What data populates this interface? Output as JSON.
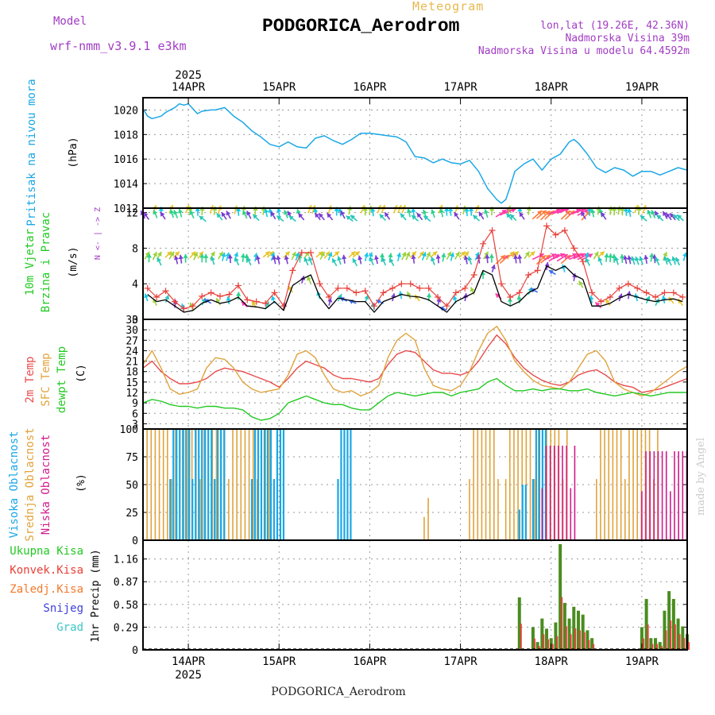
{
  "header": {
    "model_label": "Model",
    "model_name": "wrf-nmm_v3.9.1  e3km",
    "app_title": "Meteogram",
    "station": "PODGORICA_Aerodrom",
    "coords": "lon,lat (19.26E, 42.36N)",
    "elevation": "Nadmorska Visina 39m",
    "model_elevation": "Nadmorska Visina u modelu 64.4592m",
    "credit": "made by Angel",
    "footer_station": "PODGORICA_Aerodrom"
  },
  "colors": {
    "pressure": "#1aa7e6",
    "gust": "#e8403a",
    "wind_speed": "#000000",
    "temp2m": "#e84b4b",
    "sfc_temp": "#e0a33c",
    "dewpoint": "#22c922",
    "cloud_high": "#1aa7e6",
    "cloud_mid": "#e0a33c",
    "cloud_low": "#d01c8b",
    "precip_total": "#4a8c1f",
    "precip_conv": "#e8403a"
  },
  "chart_data": [
    {
      "type": "line",
      "name": "pressure",
      "ylabel": "Pritisak na nivou mora",
      "unit": "(hPa)",
      "ylim": [
        1012,
        1021
      ],
      "yticks": [
        1012,
        1014,
        1016,
        1018,
        1020
      ],
      "top_year": "2025",
      "x_labels": [
        "14APR",
        "15APR",
        "16APR",
        "17APR",
        "18APR",
        "19APR"
      ],
      "x_day_values": [
        0,
        1,
        2,
        3,
        4,
        5
      ],
      "xlim": [
        -0.5,
        5.5
      ],
      "x": [
        -0.5,
        -0.45,
        -0.4,
        -0.3,
        -0.25,
        -0.15,
        -0.1,
        -0.05,
        0.0,
        0.05,
        0.1,
        0.15,
        0.25,
        0.3,
        0.4,
        0.5,
        0.6,
        0.7,
        0.8,
        0.9,
        1.0,
        1.1,
        1.2,
        1.3,
        1.4,
        1.5,
        1.6,
        1.7,
        1.8,
        1.9,
        2.0,
        2.1,
        2.2,
        2.3,
        2.4,
        2.5,
        2.6,
        2.7,
        2.8,
        2.9,
        3.0,
        3.1,
        3.2,
        3.3,
        3.4,
        3.45,
        3.5,
        3.55,
        3.6,
        3.7,
        3.8,
        3.9,
        4.0,
        4.1,
        4.2,
        4.25,
        4.3,
        4.4,
        4.5,
        4.6,
        4.7,
        4.8,
        4.9,
        5.0,
        5.1,
        5.2,
        5.3,
        5.4,
        5.5
      ],
      "y": [
        1020.1,
        1019.5,
        1019.3,
        1019.5,
        1019.8,
        1020.2,
        1020.5,
        1020.4,
        1020.5,
        1020.1,
        1019.7,
        1019.9,
        1020.0,
        1020.0,
        1020.2,
        1019.5,
        1019.0,
        1018.3,
        1017.8,
        1017.2,
        1017.0,
        1017.4,
        1017.0,
        1016.9,
        1017.7,
        1017.9,
        1017.5,
        1017.2,
        1017.6,
        1018.1,
        1018.1,
        1018.0,
        1017.9,
        1017.8,
        1017.4,
        1016.2,
        1016.1,
        1015.7,
        1016.0,
        1015.7,
        1015.6,
        1015.9,
        1015.0,
        1013.6,
        1012.7,
        1012.4,
        1012.7,
        1013.8,
        1015.0,
        1015.6,
        1016.0,
        1015.1,
        1016.0,
        1016.4,
        1017.4,
        1017.6,
        1017.3,
        1016.4,
        1015.3,
        1014.9,
        1015.3,
        1015.1,
        1014.6,
        1015.0,
        1015.0,
        1014.7,
        1015.0,
        1015.3,
        1015.1
      ]
    },
    {
      "type": "line",
      "name": "wind",
      "ylabel": "10m Vjetar Brzina i Pravac",
      "unit": "(m/s)",
      "direction_legend": "N <- | -> Z",
      "ylim": [
        0,
        12.5
      ],
      "yticks": [
        0,
        4,
        8,
        12
      ],
      "series": [
        {
          "name": "gust",
          "x": [
            -0.45,
            -0.35,
            -0.25,
            -0.15,
            -0.05,
            0.05,
            0.15,
            0.25,
            0.35,
            0.45,
            0.55,
            0.65,
            0.75,
            0.85,
            0.95,
            1.05,
            1.15,
            1.25,
            1.35,
            1.45,
            1.55,
            1.65,
            1.75,
            1.85,
            1.95,
            2.05,
            2.15,
            2.25,
            2.35,
            2.45,
            2.55,
            2.65,
            2.75,
            2.85,
            2.95,
            3.05,
            3.15,
            3.25,
            3.35,
            3.45,
            3.55,
            3.65,
            3.75,
            3.85,
            3.95,
            4.05,
            4.15,
            4.25,
            4.35,
            4.45,
            4.55,
            4.65,
            4.75,
            4.85,
            4.95,
            5.05,
            5.15,
            5.25,
            5.35,
            5.45
          ],
          "values": [
            3.5,
            2.5,
            3.2,
            2.0,
            1.2,
            1.5,
            2.6,
            3.0,
            2.6,
            2.8,
            3.8,
            2.2,
            2.0,
            1.8,
            3.0,
            1.5,
            5.5,
            7.5,
            7.5,
            4.0,
            2.5,
            3.5,
            3.5,
            3.0,
            3.2,
            1.5,
            3.0,
            3.5,
            4.0,
            4.0,
            3.5,
            3.5,
            2.5,
            1.5,
            3.0,
            3.5,
            5.0,
            8.5,
            10.0,
            4.0,
            2.5,
            3.0,
            5.0,
            5.5,
            10.5,
            9.5,
            10.0,
            8.0,
            6.5,
            3.0,
            2.0,
            2.5,
            3.5,
            4.0,
            3.5,
            3.0,
            2.5,
            3.0,
            3.0,
            2.5
          ]
        },
        {
          "name": "wind_speed",
          "x": [
            -0.45,
            -0.35,
            -0.25,
            -0.15,
            -0.05,
            0.05,
            0.15,
            0.25,
            0.35,
            0.45,
            0.55,
            0.65,
            0.75,
            0.85,
            0.95,
            1.05,
            1.15,
            1.25,
            1.35,
            1.45,
            1.55,
            1.65,
            1.75,
            1.85,
            1.95,
            2.05,
            2.15,
            2.25,
            2.35,
            2.45,
            2.55,
            2.65,
            2.75,
            2.85,
            2.95,
            3.05,
            3.15,
            3.25,
            3.35,
            3.45,
            3.55,
            3.65,
            3.75,
            3.85,
            3.95,
            4.05,
            4.15,
            4.25,
            4.35,
            4.45,
            4.55,
            4.65,
            4.75,
            4.85,
            4.95,
            5.05,
            5.15,
            5.25,
            5.35,
            5.45
          ],
          "values": [
            2.8,
            2.0,
            2.2,
            1.5,
            0.8,
            1.0,
            1.8,
            2.2,
            1.8,
            2.0,
            2.5,
            1.5,
            1.4,
            1.2,
            2.0,
            1.0,
            3.8,
            4.5,
            5.0,
            2.5,
            1.2,
            2.4,
            2.2,
            2.0,
            2.0,
            0.8,
            2.0,
            2.4,
            2.8,
            2.6,
            2.5,
            2.2,
            1.5,
            0.8,
            2.0,
            2.5,
            3.0,
            5.5,
            5.0,
            2.0,
            1.5,
            2.0,
            3.0,
            3.5,
            6.0,
            5.5,
            6.0,
            5.0,
            4.5,
            1.5,
            1.5,
            1.8,
            2.4,
            2.8,
            2.5,
            2.2,
            2.0,
            2.2,
            2.3,
            2.0
          ]
        }
      ]
    },
    {
      "type": "line",
      "name": "temperature",
      "ylabel_lines": [
        "2m Temp",
        "SFC Temp",
        "dewpt Temp"
      ],
      "unit": "(C)",
      "ylim": [
        1.5,
        33
      ],
      "yticks": [
        3,
        6,
        9,
        12,
        15,
        18,
        21,
        24,
        27,
        30,
        33
      ],
      "series": [
        {
          "name": "2m Temp",
          "x": [
            -0.5,
            -0.4,
            -0.3,
            -0.2,
            -0.1,
            0.0,
            0.1,
            0.2,
            0.3,
            0.4,
            0.5,
            0.6,
            0.7,
            0.8,
            0.9,
            1.0,
            1.1,
            1.2,
            1.3,
            1.4,
            1.5,
            1.6,
            1.7,
            1.8,
            1.9,
            2.0,
            2.1,
            2.2,
            2.3,
            2.4,
            2.5,
            2.6,
            2.7,
            2.8,
            2.9,
            3.0,
            3.1,
            3.2,
            3.3,
            3.4,
            3.5,
            3.6,
            3.7,
            3.8,
            3.9,
            4.0,
            4.1,
            4.2,
            4.3,
            4.4,
            4.5,
            4.6,
            4.7,
            4.8,
            4.9,
            5.0,
            5.1,
            5.2,
            5.3,
            5.4,
            5.5
          ],
          "values": [
            19,
            21,
            18,
            16,
            14.5,
            14.5,
            15,
            16,
            18,
            19,
            18.5,
            18,
            17,
            16,
            15,
            13.5,
            16,
            19,
            21,
            20,
            19,
            17,
            16,
            16,
            15.5,
            15,
            16,
            20,
            23,
            24,
            23.5,
            21,
            18.5,
            17.5,
            17.5,
            17,
            18,
            21,
            25,
            28.5,
            26,
            22,
            19,
            17,
            15.5,
            14.5,
            14,
            15,
            17,
            18,
            18.5,
            17,
            15,
            14,
            13.5,
            12,
            12.5,
            13,
            14,
            15,
            16
          ]
        },
        {
          "name": "SFC Temp",
          "x": [
            -0.5,
            -0.4,
            -0.3,
            -0.2,
            -0.1,
            0.0,
            0.1,
            0.2,
            0.3,
            0.4,
            0.5,
            0.6,
            0.7,
            0.8,
            0.9,
            1.0,
            1.1,
            1.2,
            1.3,
            1.4,
            1.5,
            1.6,
            1.7,
            1.8,
            1.9,
            2.0,
            2.1,
            2.2,
            2.3,
            2.4,
            2.5,
            2.6,
            2.7,
            2.8,
            2.9,
            3.0,
            3.1,
            3.2,
            3.3,
            3.4,
            3.5,
            3.6,
            3.7,
            3.8,
            3.9,
            4.0,
            4.1,
            4.2,
            4.3,
            4.4,
            4.5,
            4.6,
            4.7,
            4.8,
            4.9,
            5.0,
            5.1,
            5.2,
            5.3,
            5.4,
            5.5
          ],
          "values": [
            20,
            24,
            19,
            13,
            11.5,
            12,
            13,
            19,
            22,
            21.5,
            19,
            15,
            13,
            12,
            12.5,
            13,
            17,
            23,
            24,
            22,
            17,
            13,
            12,
            12.5,
            11,
            12,
            14,
            22,
            27,
            29,
            27,
            19,
            14,
            13,
            12.5,
            14,
            18,
            24,
            29,
            31,
            27,
            21,
            18,
            15.5,
            14,
            13.5,
            13,
            15,
            19,
            23,
            24,
            21,
            15,
            13,
            12,
            11,
            12,
            14,
            16,
            18,
            19.5
          ]
        },
        {
          "name": "dewpt Temp",
          "x": [
            -0.5,
            -0.4,
            -0.3,
            -0.2,
            -0.1,
            0.0,
            0.1,
            0.2,
            0.3,
            0.4,
            0.5,
            0.6,
            0.7,
            0.8,
            0.9,
            1.0,
            1.1,
            1.2,
            1.3,
            1.4,
            1.5,
            1.6,
            1.7,
            1.8,
            1.9,
            2.0,
            2.1,
            2.2,
            2.3,
            2.4,
            2.5,
            2.6,
            2.7,
            2.8,
            2.9,
            3.0,
            3.1,
            3.2,
            3.3,
            3.4,
            3.5,
            3.6,
            3.7,
            3.8,
            3.9,
            4.0,
            4.1,
            4.2,
            4.3,
            4.4,
            4.5,
            4.6,
            4.7,
            4.8,
            4.9,
            5.0,
            5.1,
            5.2,
            5.3,
            5.4,
            5.5
          ],
          "values": [
            9,
            10,
            9.5,
            8.5,
            8,
            8,
            7.5,
            8,
            8,
            7.5,
            7.5,
            7,
            5,
            4,
            4.5,
            6,
            9,
            10,
            11,
            10,
            9,
            8.5,
            8.5,
            7.5,
            7,
            7,
            9,
            11,
            12,
            11.5,
            11,
            11.5,
            12,
            12,
            11,
            12,
            12.5,
            13,
            15,
            16,
            14,
            12.5,
            12.5,
            13,
            12.5,
            13,
            13,
            12.5,
            12.5,
            13,
            12,
            11.5,
            11,
            11.5,
            12,
            11.5,
            11,
            11.5,
            12,
            12,
            12
          ]
        }
      ]
    },
    {
      "type": "bar",
      "name": "clouds",
      "ylabel_lines": [
        "Visoka Oblacnost",
        "Srednja Oblacnost",
        "Niska Oblacnost"
      ],
      "unit": "(%)",
      "ylim": [
        0,
        100
      ],
      "yticks": [
        0,
        25,
        50,
        75,
        100
      ],
      "series": [
        {
          "name": "Srednja Oblacnost",
          "ranges": [
            [
              -0.5,
              0.9,
              100
            ],
            [
              2.6,
              2.65,
              38
            ],
            [
              3.1,
              3.45,
              100
            ],
            [
              3.5,
              4.2,
              100
            ],
            [
              4.5,
              5.2,
              100
            ]
          ]
        },
        {
          "name": "Visoka Oblacnost",
          "ranges": [
            [
              -0.2,
              0.4,
              100
            ],
            [
              0.7,
              1.05,
              100
            ],
            [
              1.65,
              1.8,
              100
            ],
            [
              3.65,
              3.75,
              50
            ],
            [
              3.8,
              3.95,
              100
            ]
          ]
        },
        {
          "name": "Niska Oblacnost",
          "ranges": [
            [
              3.9,
              4.3,
              85
            ],
            [
              5.0,
              5.5,
              80
            ]
          ]
        }
      ]
    },
    {
      "type": "bar",
      "name": "precipitation",
      "unit": "1hr Precip (mm)",
      "legend": [
        "Ukupna Kisa",
        "Konvek.Kisa",
        "Zaledj.Kisa",
        "Snijeg",
        "Grad"
      ],
      "ylim": [
        0,
        1.4
      ],
      "yticks": [
        0,
        0.29,
        0.58,
        0.87,
        1.16
      ],
      "bottom_year": "2025",
      "x": [
        3.65,
        3.8,
        3.85,
        3.9,
        3.95,
        4.0,
        4.05,
        4.1,
        4.15,
        4.2,
        4.25,
        4.3,
        4.35,
        4.4,
        4.45,
        5.0,
        5.05,
        5.1,
        5.15,
        5.2,
        5.25,
        5.3,
        5.35,
        5.4,
        5.45,
        5.5
      ],
      "values": [
        0.67,
        0.29,
        0.1,
        0.4,
        0.27,
        0.15,
        0.35,
        1.35,
        0.6,
        0.4,
        0.55,
        0.5,
        0.45,
        0.25,
        0.15,
        0.29,
        0.65,
        0.15,
        0.15,
        0.1,
        0.5,
        0.75,
        0.65,
        0.4,
        0.3,
        0.2
      ]
    }
  ]
}
